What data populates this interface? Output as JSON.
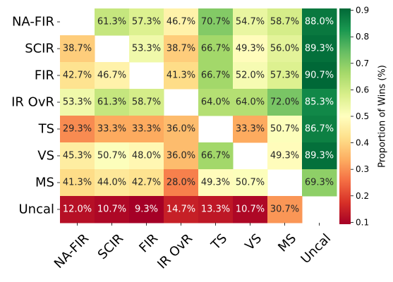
{
  "chart_data": {
    "type": "heatmap",
    "rows": [
      "NA-FIR",
      "SCIR",
      "FIR",
      "IR OvR",
      "TS",
      "VS",
      "MS",
      "Uncal"
    ],
    "columns": [
      "NA-FIR",
      "SCIR",
      "FIR",
      "IR OvR",
      "TS",
      "VS",
      "MS",
      "Uncal"
    ],
    "values": [
      [
        null,
        0.613,
        0.573,
        0.467,
        0.707,
        0.547,
        0.587,
        0.88
      ],
      [
        0.387,
        null,
        0.533,
        0.387,
        0.667,
        0.493,
        0.56,
        0.893
      ],
      [
        0.427,
        0.467,
        null,
        0.413,
        0.667,
        0.52,
        0.573,
        0.907
      ],
      [
        0.533,
        0.613,
        0.587,
        null,
        0.64,
        0.64,
        0.72,
        0.853
      ],
      [
        0.293,
        0.333,
        0.333,
        0.36,
        null,
        0.333,
        0.507,
        0.867
      ],
      [
        0.453,
        0.507,
        0.48,
        0.36,
        0.667,
        null,
        0.493,
        0.893
      ],
      [
        0.413,
        0.44,
        0.427,
        0.28,
        0.493,
        0.507,
        null,
        0.693
      ],
      [
        0.12,
        0.107,
        0.093,
        0.147,
        0.133,
        0.107,
        0.307,
        null
      ]
    ],
    "cell_labels": [
      [
        "",
        "61.3%",
        "57.3%",
        "46.7%",
        "70.7%",
        "54.7%",
        "58.7%",
        "88.0%"
      ],
      [
        "38.7%",
        "",
        "53.3%",
        "38.7%",
        "66.7%",
        "49.3%",
        "56.0%",
        "89.3%"
      ],
      [
        "42.7%",
        "46.7%",
        "",
        "41.3%",
        "66.7%",
        "52.0%",
        "57.3%",
        "90.7%"
      ],
      [
        "53.3%",
        "61.3%",
        "58.7%",
        "",
        "64.0%",
        "64.0%",
        "72.0%",
        "85.3%"
      ],
      [
        "29.3%",
        "33.3%",
        "33.3%",
        "36.0%",
        "",
        "33.3%",
        "50.7%",
        "86.7%"
      ],
      [
        "45.3%",
        "50.7%",
        "48.0%",
        "36.0%",
        "66.7%",
        "",
        "49.3%",
        "89.3%"
      ],
      [
        "41.3%",
        "44.0%",
        "42.7%",
        "28.0%",
        "49.3%",
        "50.7%",
        "",
        "69.3%"
      ],
      [
        "12.0%",
        "10.7%",
        "9.3%",
        "14.7%",
        "13.3%",
        "10.7%",
        "30.7%",
        ""
      ]
    ],
    "colormap": "RdYlGn",
    "colorbar": {
      "label": "Proportion of Wins (%)",
      "range": [
        0.093,
        0.907
      ],
      "ticks": [
        "0.1",
        "0.2",
        "0.3",
        "0.4",
        "0.5",
        "0.6",
        "0.7",
        "0.8",
        "0.9"
      ]
    },
    "xlabel": "",
    "ylabel": "",
    "title": ""
  }
}
